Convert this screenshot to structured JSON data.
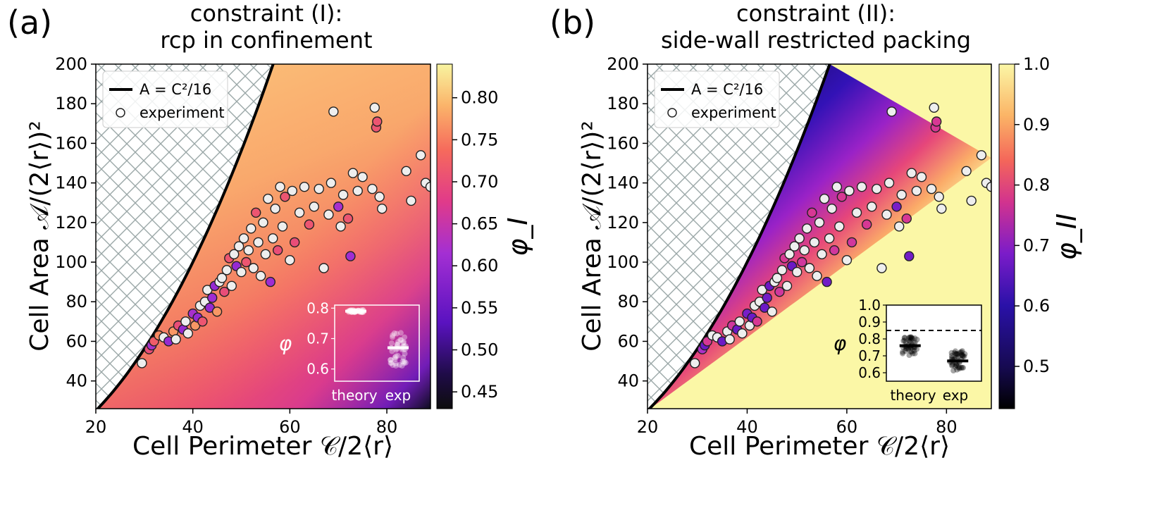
{
  "chart_data": [
    {
      "type": "scatter",
      "panel_label": "(a)",
      "title_line1": "constraint (I):",
      "title_line2": "rcp in confinement",
      "xlabel": "Cell Perimeter 𝒞/2⟨r⟩",
      "ylabel": "Cell Area 𝒜/(2⟨r⟩)²",
      "xlim": [
        20,
        89
      ],
      "ylim": [
        26,
        200
      ],
      "xticks": [
        "20",
        "40",
        "60",
        "80"
      ],
      "yticks": [
        "40",
        "60",
        "80",
        "100",
        "120",
        "140",
        "160",
        "180",
        "200"
      ],
      "xtick_values": [
        20,
        40,
        60,
        80
      ],
      "ytick_values": [
        40,
        60,
        80,
        100,
        120,
        140,
        160,
        180,
        200
      ],
      "boundary_curve": "A = C²/16",
      "legend": [
        "A = C²/16",
        "experiment"
      ],
      "colorbar_label": "φ_I",
      "colorbar_range": [
        0.43,
        0.84
      ],
      "colorbar_ticks": [
        "0.45",
        "0.50",
        "0.55",
        "0.60",
        "0.65",
        "0.70",
        "0.75",
        "0.80"
      ],
      "colorbar_tick_values": [
        0.45,
        0.5,
        0.55,
        0.6,
        0.65,
        0.7,
        0.75,
        0.8
      ],
      "inset": {
        "ylabel": "φ",
        "categories": [
          "theory",
          "exp"
        ],
        "yticks": [
          "0.6",
          "0.7",
          "0.8"
        ],
        "ytick_values": [
          0.6,
          0.7,
          0.8
        ],
        "ylim": [
          0.56,
          0.81
        ],
        "means": [
          0.79,
          0.67
        ]
      },
      "points": [
        [
          29.5,
          49,
          0.78
        ],
        [
          31,
          56,
          0.7
        ],
        [
          31.5,
          58,
          0.62
        ],
        [
          32,
          60,
          0.72
        ],
        [
          33,
          63,
          0.76
        ],
        [
          34,
          62,
          0.78
        ],
        [
          35,
          60,
          0.6
        ],
        [
          36,
          65,
          0.77
        ],
        [
          36.5,
          61,
          0.79
        ],
        [
          37,
          68,
          0.7
        ],
        [
          38,
          66,
          0.6
        ],
        [
          38.5,
          70,
          0.78
        ],
        [
          39,
          64,
          0.79
        ],
        [
          40,
          74,
          0.62
        ],
        [
          40.5,
          68,
          0.77
        ],
        [
          41,
          72,
          0.6
        ],
        [
          41.5,
          78,
          0.79
        ],
        [
          42,
          70,
          0.71
        ],
        [
          42.5,
          80,
          0.79
        ],
        [
          43,
          86,
          0.78
        ],
        [
          43.5,
          77,
          0.6
        ],
        [
          44,
          82,
          0.61
        ],
        [
          44.5,
          88,
          0.6
        ],
        [
          45,
          75,
          0.77
        ],
        [
          45.5,
          90,
          0.78
        ],
        [
          46,
          92,
          0.79
        ],
        [
          46.5,
          85,
          0.7
        ],
        [
          47,
          96,
          0.78
        ],
        [
          47.5,
          102,
          0.71
        ],
        [
          48,
          88,
          0.79
        ],
        [
          48.5,
          104,
          0.78
        ],
        [
          49,
          98,
          0.6
        ],
        [
          49.5,
          108,
          0.79
        ],
        [
          50,
          95,
          0.79
        ],
        [
          50.5,
          112,
          0.78
        ],
        [
          51,
          100,
          0.71
        ],
        [
          51.5,
          106,
          0.79
        ],
        [
          52,
          117,
          0.78
        ],
        [
          52.5,
          97,
          0.79
        ],
        [
          53,
          125,
          0.71
        ],
        [
          53.5,
          110,
          0.79
        ],
        [
          54,
          93,
          0.78
        ],
        [
          54.5,
          120,
          0.79
        ],
        [
          55,
          104,
          0.79
        ],
        [
          55.5,
          132,
          0.78
        ],
        [
          56,
          90,
          0.61
        ],
        [
          56.5,
          112,
          0.79
        ],
        [
          57,
          127,
          0.78
        ],
        [
          57.5,
          106,
          0.7
        ],
        [
          58,
          138,
          0.79
        ],
        [
          58.5,
          118,
          0.78
        ],
        [
          59,
          133,
          0.71
        ],
        [
          60,
          101,
          0.79
        ],
        [
          60.5,
          136,
          0.79
        ],
        [
          61,
          110,
          0.7
        ],
        [
          62,
          125,
          0.79
        ],
        [
          63,
          138,
          0.78
        ],
        [
          64,
          119,
          0.71
        ],
        [
          65,
          128,
          0.79
        ],
        [
          66,
          137,
          0.78
        ],
        [
          67,
          97,
          0.79
        ],
        [
          68,
          124,
          0.78
        ],
        [
          68.5,
          140,
          0.79
        ],
        [
          69,
          176,
          0.78
        ],
        [
          70,
          128,
          0.62
        ],
        [
          70.5,
          118,
          0.79
        ],
        [
          71,
          134,
          0.78
        ],
        [
          72,
          122,
          0.71
        ],
        [
          72.5,
          103,
          0.61
        ],
        [
          73,
          145,
          0.79
        ],
        [
          74,
          136,
          0.78
        ],
        [
          75,
          143,
          0.79
        ],
        [
          77,
          137,
          0.78
        ],
        [
          77.5,
          178,
          0.78
        ],
        [
          77.8,
          168,
          0.71
        ],
        [
          78,
          171,
          0.71
        ],
        [
          78.5,
          133,
          0.79
        ],
        [
          79,
          127,
          0.78
        ],
        [
          84,
          146,
          0.79
        ],
        [
          85,
          131,
          0.79
        ],
        [
          87,
          154,
          0.78
        ],
        [
          88,
          140,
          0.79
        ],
        [
          89,
          138,
          0.78
        ]
      ]
    },
    {
      "type": "scatter",
      "panel_label": "(b)",
      "title_line1": "constraint (II):",
      "title_line2": "side-wall restricted packing",
      "xlabel": "Cell Perimeter 𝒞/2⟨r⟩",
      "ylabel": "Cell Area 𝒜/(2⟨r⟩)²",
      "xlim": [
        20,
        89
      ],
      "ylim": [
        26,
        200
      ],
      "xticks": [
        "20",
        "40",
        "60",
        "80"
      ],
      "yticks": [
        "40",
        "60",
        "80",
        "100",
        "120",
        "140",
        "160",
        "180",
        "200"
      ],
      "xtick_values": [
        20,
        40,
        60,
        80
      ],
      "ytick_values": [
        40,
        60,
        80,
        100,
        120,
        140,
        160,
        180,
        200
      ],
      "boundary_curve": "A = C²/16",
      "legend": [
        "A = C²/16",
        "experiment"
      ],
      "colorbar_label": "φ_II",
      "colorbar_range": [
        0.43,
        1.0
      ],
      "colorbar_ticks": [
        "0.5",
        "0.6",
        "0.7",
        "0.8",
        "0.9",
        "1.0"
      ],
      "colorbar_tick_values": [
        0.5,
        0.6,
        0.7,
        0.8,
        0.9,
        1.0
      ],
      "inset": {
        "ylabel": "φ",
        "categories": [
          "theory",
          "exp"
        ],
        "yticks": [
          "0.6",
          "0.7",
          "0.8",
          "0.9",
          "1.0"
        ],
        "ytick_values": [
          0.6,
          0.7,
          0.8,
          0.9,
          1.0
        ],
        "ylim": [
          0.55,
          1.0
        ],
        "means": [
          0.76,
          0.67
        ],
        "dashed_line": 0.85
      },
      "points": [
        [
          29.5,
          49,
          0.98
        ],
        [
          31,
          56,
          0.7
        ],
        [
          31.5,
          58,
          0.6
        ],
        [
          32,
          60,
          0.76
        ],
        [
          33,
          63,
          0.96
        ],
        [
          34,
          62,
          0.98
        ],
        [
          35,
          60,
          0.6
        ],
        [
          36,
          65,
          0.96
        ],
        [
          36.5,
          61,
          0.98
        ],
        [
          37,
          68,
          0.75
        ],
        [
          38,
          66,
          0.6
        ],
        [
          38.5,
          70,
          0.97
        ],
        [
          39,
          64,
          0.98
        ],
        [
          40,
          74,
          0.62
        ],
        [
          40.5,
          68,
          0.96
        ],
        [
          41,
          72,
          0.6
        ],
        [
          41.5,
          78,
          0.97
        ],
        [
          42,
          70,
          0.76
        ],
        [
          42.5,
          80,
          0.98
        ],
        [
          43,
          86,
          0.96
        ],
        [
          43.5,
          77,
          0.6
        ],
        [
          44,
          82,
          0.61
        ],
        [
          44.5,
          88,
          0.6
        ],
        [
          45,
          75,
          0.97
        ],
        [
          45.5,
          90,
          0.96
        ],
        [
          46,
          92,
          0.98
        ],
        [
          46.5,
          85,
          0.75
        ],
        [
          47,
          96,
          0.96
        ],
        [
          47.5,
          102,
          0.76
        ],
        [
          48,
          88,
          0.98
        ],
        [
          48.5,
          104,
          0.96
        ],
        [
          49,
          98,
          0.6
        ],
        [
          49.5,
          108,
          0.98
        ],
        [
          50,
          95,
          0.98
        ],
        [
          50.5,
          112,
          0.96
        ],
        [
          51,
          100,
          0.75
        ],
        [
          51.5,
          106,
          0.98
        ],
        [
          52,
          117,
          0.96
        ],
        [
          52.5,
          97,
          0.98
        ],
        [
          53,
          125,
          0.76
        ],
        [
          53.5,
          110,
          0.98
        ],
        [
          54,
          93,
          0.96
        ],
        [
          54.5,
          120,
          0.98
        ],
        [
          55,
          104,
          0.98
        ],
        [
          55.5,
          132,
          0.96
        ],
        [
          56,
          90,
          0.61
        ],
        [
          56.5,
          112,
          0.98
        ],
        [
          57,
          127,
          0.96
        ],
        [
          57.5,
          106,
          0.75
        ],
        [
          58,
          138,
          0.98
        ],
        [
          58.5,
          118,
          0.96
        ],
        [
          59,
          133,
          0.76
        ],
        [
          60,
          101,
          0.98
        ],
        [
          60.5,
          136,
          0.98
        ],
        [
          61,
          110,
          0.75
        ],
        [
          62,
          125,
          0.98
        ],
        [
          63,
          138,
          0.96
        ],
        [
          64,
          119,
          0.76
        ],
        [
          65,
          128,
          0.98
        ],
        [
          66,
          137,
          0.96
        ],
        [
          67,
          97,
          0.98
        ],
        [
          68,
          124,
          0.96
        ],
        [
          68.5,
          140,
          0.98
        ],
        [
          69,
          176,
          0.96
        ],
        [
          70,
          128,
          0.62
        ],
        [
          70.5,
          118,
          0.98
        ],
        [
          71,
          134,
          0.96
        ],
        [
          72,
          122,
          0.76
        ],
        [
          72.5,
          103,
          0.61
        ],
        [
          73,
          145,
          0.98
        ],
        [
          74,
          136,
          0.96
        ],
        [
          75,
          143,
          0.98
        ],
        [
          77,
          137,
          0.96
        ],
        [
          77.5,
          178,
          0.96
        ],
        [
          77.8,
          168,
          0.76
        ],
        [
          78,
          171,
          0.76
        ],
        [
          78.5,
          133,
          0.98
        ],
        [
          79,
          127,
          0.96
        ],
        [
          84,
          146,
          0.98
        ],
        [
          85,
          131,
          0.98
        ],
        [
          87,
          154,
          0.96
        ],
        [
          88,
          140,
          0.98
        ],
        [
          89,
          138,
          0.96
        ]
      ]
    }
  ],
  "colors": {
    "point_stroke": "#222222",
    "curve": "#000000",
    "hatch": "#9aa7a7"
  }
}
